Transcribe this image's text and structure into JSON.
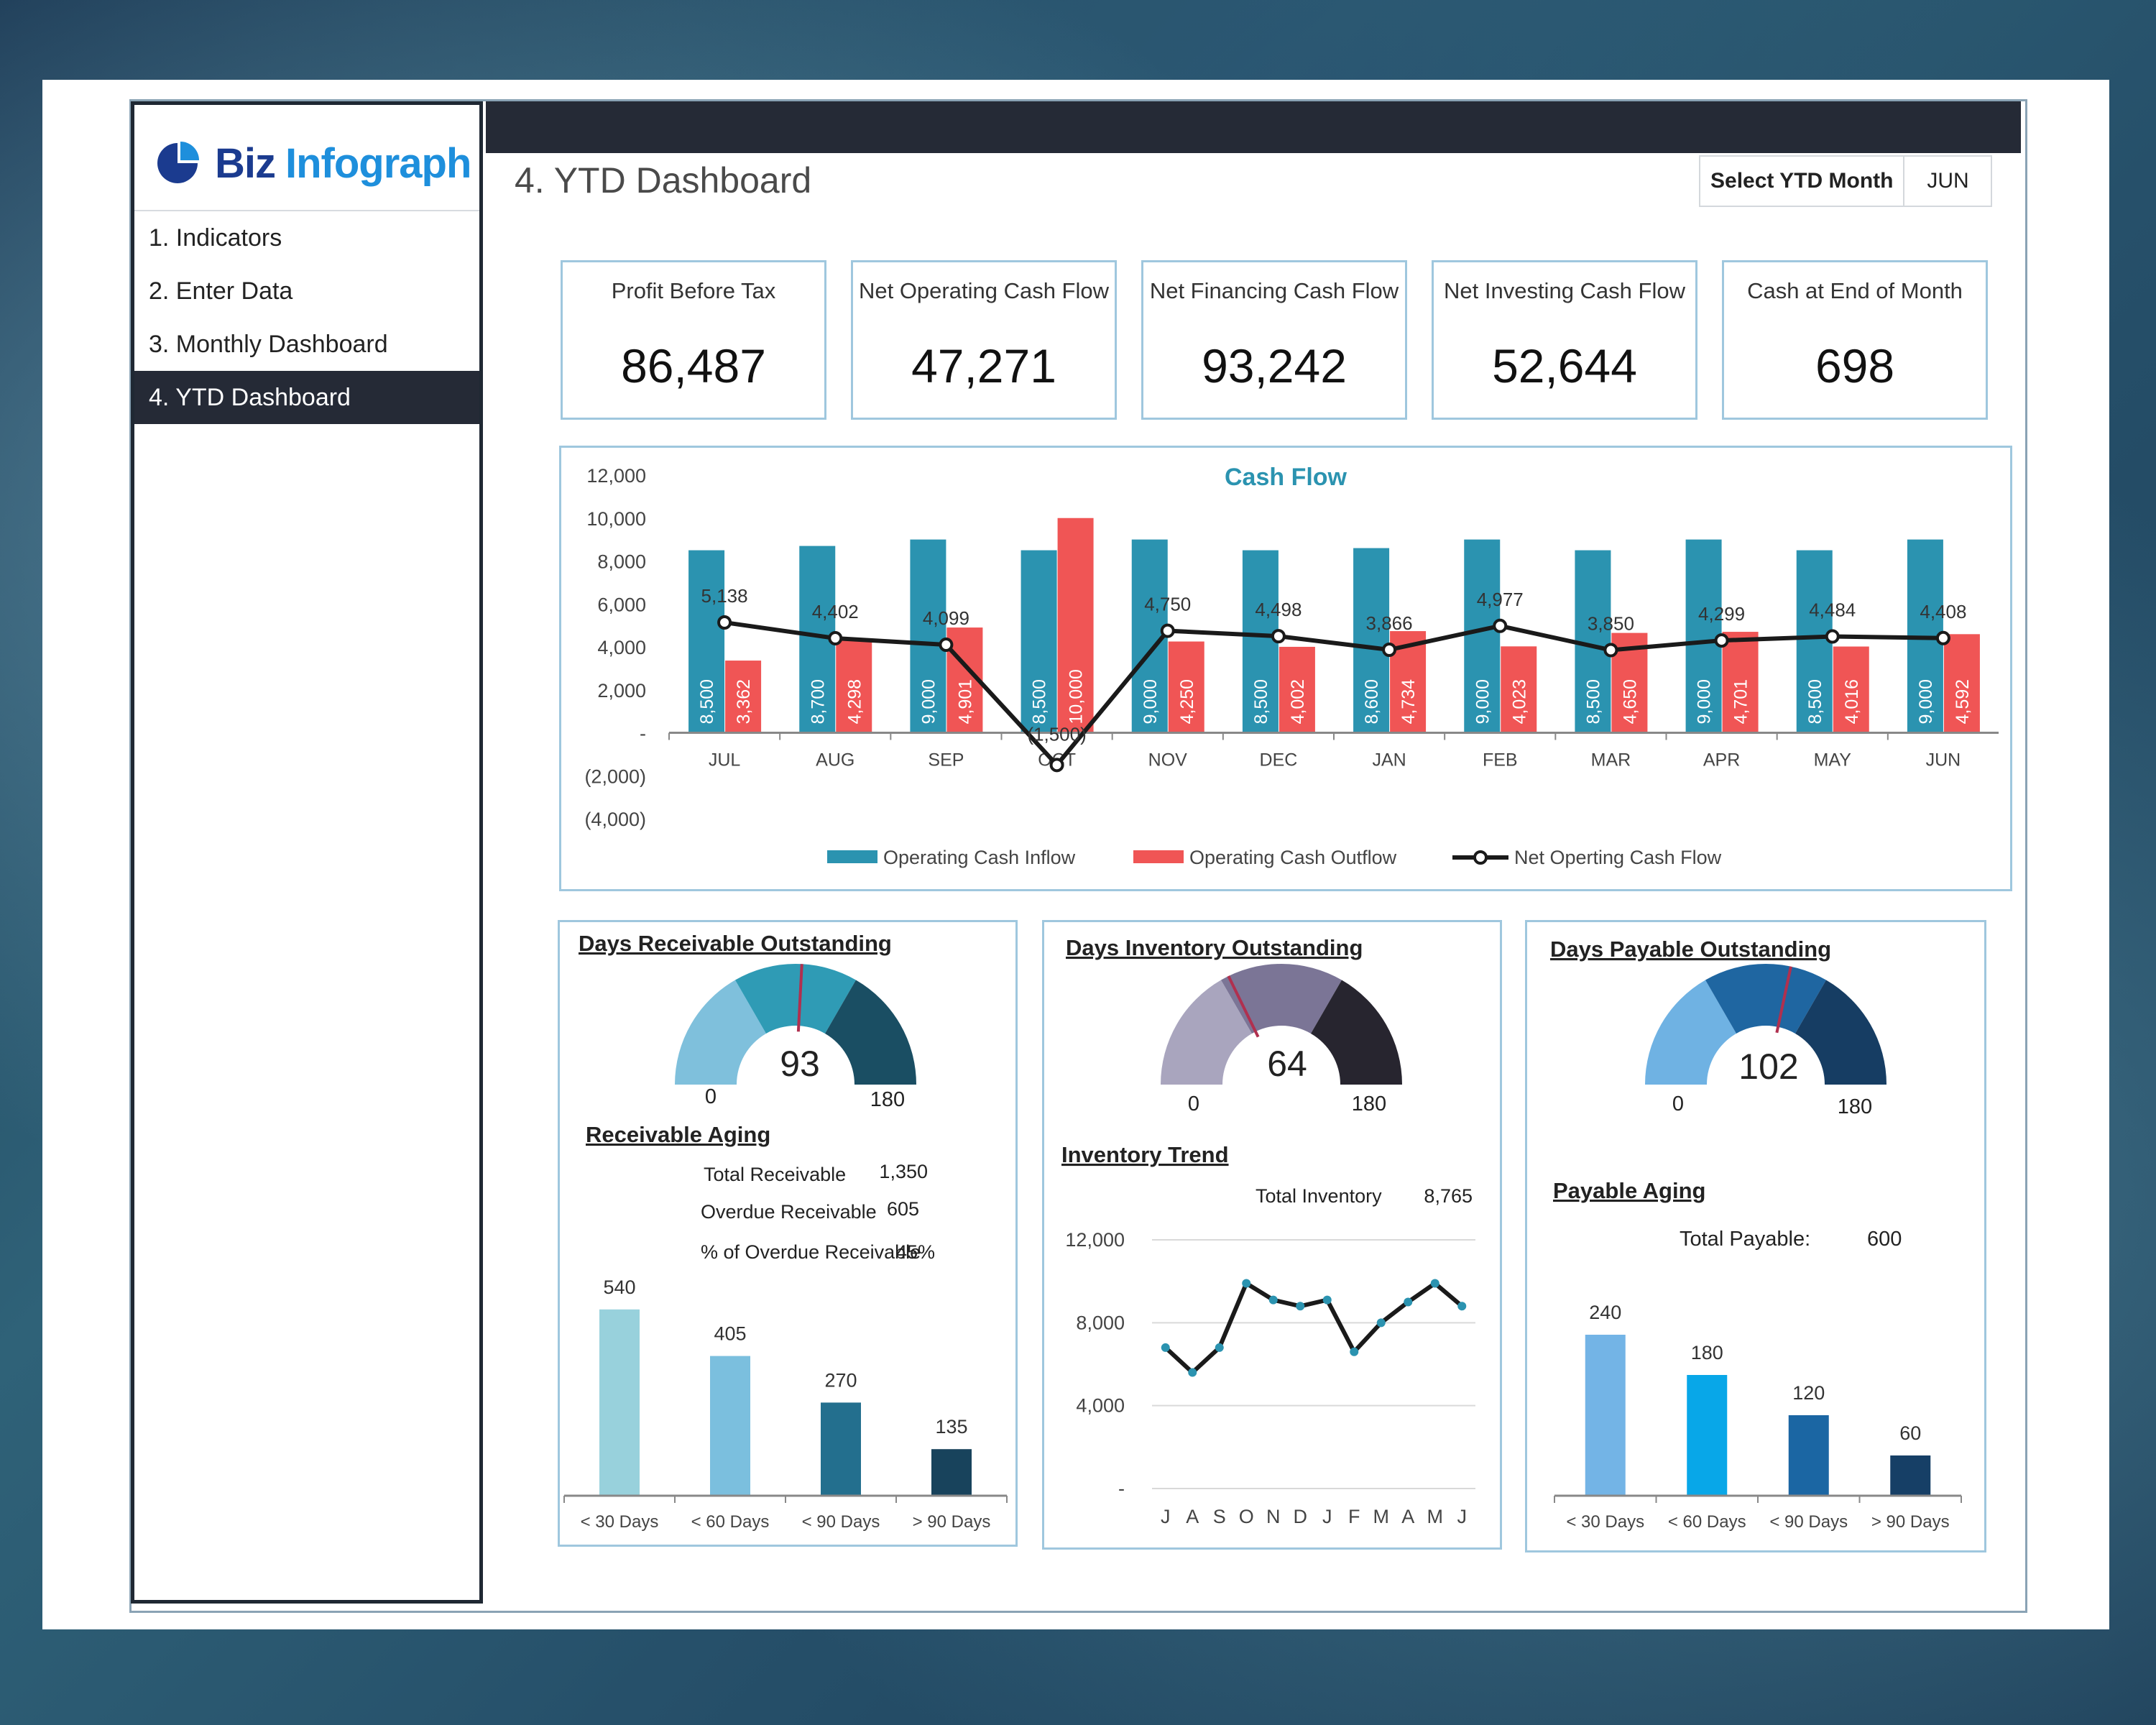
{
  "app": {
    "logo_word1": "Biz",
    "logo_word2": "Infograph"
  },
  "sidebar": {
    "items": [
      {
        "label": "1. Indicators"
      },
      {
        "label": "2. Enter Data"
      },
      {
        "label": "3. Monthly Dashboard"
      },
      {
        "label": "4. YTD Dashboard",
        "active": true
      }
    ]
  },
  "header": {
    "title": "4. YTD Dashboard",
    "select_label": "Select YTD Month",
    "select_value": "JUN"
  },
  "kpis": [
    {
      "label": "Profit Before Tax",
      "value": "86,487"
    },
    {
      "label": "Net Operating Cash Flow",
      "value": "47,271"
    },
    {
      "label": "Net Financing Cash Flow",
      "value": "93,242"
    },
    {
      "label": "Net Investing Cash Flow",
      "value": "52,644"
    },
    {
      "label": "Cash at End of Month",
      "value": "698"
    }
  ],
  "colors": {
    "inflow": "#2b93b0",
    "outflow": "#f05555",
    "net": "#1a1a1a",
    "kpi_border": "#9fc7de",
    "dark": "#252a36"
  },
  "chart_data": [
    {
      "type": "bar",
      "title": "Cash Flow",
      "categories": [
        "JUL",
        "AUG",
        "SEP",
        "OCT",
        "NOV",
        "DEC",
        "JAN",
        "FEB",
        "MAR",
        "APR",
        "MAY",
        "JUN"
      ],
      "series": [
        {
          "name": "Operating Cash Inflow",
          "type": "bar",
          "values": [
            8500,
            8700,
            9000,
            8500,
            9000,
            8500,
            8600,
            9000,
            8500,
            9000,
            8500,
            9000
          ],
          "labels": [
            "8,500",
            "8,700",
            "9,000",
            "8,500",
            "9,000",
            "8,500",
            "8,600",
            "9,000",
            "8,500",
            "9,000",
            "8,500",
            "9,000"
          ]
        },
        {
          "name": "Operating Cash Outflow",
          "type": "bar",
          "values": [
            3362,
            4298,
            4901,
            10000,
            4250,
            4002,
            4734,
            4023,
            4650,
            4701,
            4016,
            4592
          ],
          "labels": [
            "3,362",
            "4,298",
            "4,901",
            "10,000",
            "4,250",
            "4,002",
            "4,734",
            "4,023",
            "4,650",
            "4,701",
            "4,016",
            "4,592"
          ]
        },
        {
          "name": "Net Operting Cash Flow",
          "type": "line",
          "values": [
            5138,
            4402,
            4099,
            -1500,
            4750,
            4498,
            3866,
            4977,
            3850,
            4299,
            4484,
            4408
          ],
          "labels": [
            "5,138",
            "4,402",
            "4,099",
            "(1,500)",
            "4,750",
            "4,498",
            "3,866",
            "4,977",
            "3,850",
            "4,299",
            "4,484",
            "4,408"
          ]
        }
      ],
      "ylim": [
        -4000,
        12000
      ],
      "yticks": [
        12000,
        10000,
        8000,
        6000,
        4000,
        2000,
        0,
        -2000,
        -4000
      ],
      "ytick_labels": [
        "12,000",
        "10,000",
        "8,000",
        "6,000",
        "4,000",
        "2,000",
        "-",
        "(2,000)",
        "(4,000)"
      ],
      "legend": "bottom"
    },
    {
      "type": "gauge",
      "title": "Days Receivable Outstanding",
      "value": 93,
      "min": 0,
      "max": 180,
      "value_label": "93",
      "min_label": "0",
      "max_label": "180",
      "band_colors": [
        "#7fc0dc",
        "#2f9bb5",
        "#1a4e63"
      ]
    },
    {
      "type": "bar",
      "title": "Receivable Aging",
      "categories": [
        "< 30 Days",
        "< 60 Days",
        "< 90 Days",
        "> 90 Days"
      ],
      "values": [
        540,
        405,
        270,
        135
      ],
      "value_labels": [
        "540",
        "405",
        "270",
        "135"
      ],
      "colors": [
        "#98d1dc",
        "#7bbfde",
        "#236f8e",
        "#18435c"
      ],
      "ylim": [
        0,
        600
      ]
    },
    {
      "type": "gauge",
      "title": "Days Inventory Outstanding",
      "value": 64,
      "min": 0,
      "max": 180,
      "value_label": "64",
      "min_label": "0",
      "max_label": "180",
      "band_colors": [
        "#a9a5be",
        "#7b7596",
        "#27252f"
      ]
    },
    {
      "type": "line",
      "title": "Inventory Trend",
      "categories": [
        "J",
        "A",
        "S",
        "O",
        "N",
        "D",
        "J",
        "F",
        "M",
        "A",
        "M",
        "J"
      ],
      "values": [
        6800,
        5600,
        6800,
        9900,
        9100,
        8800,
        9100,
        6600,
        8000,
        9000,
        9900,
        8800
      ],
      "ylim": [
        0,
        12000
      ],
      "yticks": [
        12000,
        8000,
        4000,
        0
      ],
      "ytick_labels": [
        "12,000",
        "8,000",
        "4,000",
        "-"
      ]
    },
    {
      "type": "gauge",
      "title": "Days Payable Outstanding",
      "value": 102,
      "min": 0,
      "max": 180,
      "value_label": "102",
      "min_label": "0",
      "max_label": "180",
      "band_colors": [
        "#6fb2e3",
        "#1f66a1",
        "#163d63"
      ]
    },
    {
      "type": "bar",
      "title": "Payable Aging",
      "categories": [
        "< 30 Days",
        "< 60 Days",
        "< 90 Days",
        "> 90 Days"
      ],
      "values": [
        240,
        180,
        120,
        60
      ],
      "value_labels": [
        "240",
        "180",
        "120",
        "60"
      ],
      "colors": [
        "#73b4e6",
        "#08a7e8",
        "#1b66a3",
        "#163f66"
      ],
      "ylim": [
        0,
        300
      ]
    }
  ],
  "receivable_summary": [
    {
      "label": "Total Receivable",
      "value": "1,350"
    },
    {
      "label": "Overdue Receivable",
      "value": "605"
    },
    {
      "label": "% of Overdue Receivable",
      "value": "45%"
    }
  ],
  "inventory_summary": {
    "label": "Total Inventory",
    "value": "8,765"
  },
  "payable_summary": {
    "label": "Total Payable:",
    "value": "600"
  }
}
